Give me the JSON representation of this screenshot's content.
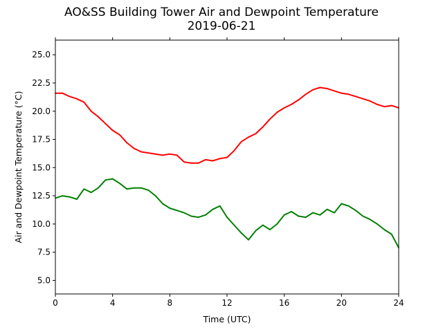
{
  "chart_data": {
    "type": "line",
    "title": "AO&SS Building Tower Air and Dewpoint Temperature",
    "subtitle": "2019-06-21",
    "xlabel": "Time (UTC)",
    "ylabel": "Air and Dewpoint Temperature (°C)",
    "xlim": [
      0,
      24
    ],
    "ylim": [
      3.8,
      26.3
    ],
    "x_ticks": [
      0,
      4,
      8,
      12,
      16,
      20,
      24
    ],
    "y_ticks": [
      5.0,
      7.5,
      10.0,
      12.5,
      15.0,
      17.5,
      20.0,
      22.5,
      25.0
    ],
    "y_tick_labels": [
      "5.0",
      "7.5",
      "10.0",
      "12.5",
      "15.0",
      "17.5",
      "20.0",
      "22.5",
      "25.0"
    ],
    "grid": false,
    "legend": "none",
    "series": [
      {
        "color": "#ff0000",
        "x": [
          0,
          0.5,
          1,
          1.5,
          2,
          2.5,
          3,
          3.5,
          4,
          4.5,
          5,
          5.5,
          6,
          6.5,
          7,
          7.5,
          8,
          8.5,
          9,
          9.5,
          10,
          10.5,
          11,
          11.5,
          12,
          12.5,
          13,
          13.5,
          14,
          14.5,
          15,
          15.5,
          16,
          16.5,
          17,
          17.5,
          18,
          18.5,
          19,
          19.5,
          20,
          20.5,
          21,
          21.5,
          22,
          22.5,
          23,
          23.5,
          24
        ],
        "values": [
          21.6,
          21.6,
          21.3,
          21.1,
          20.8,
          20.0,
          19.5,
          18.9,
          18.3,
          17.9,
          17.2,
          16.7,
          16.4,
          16.3,
          16.2,
          16.1,
          16.2,
          16.1,
          15.5,
          15.4,
          15.4,
          15.7,
          15.6,
          15.8,
          15.9,
          16.5,
          17.3,
          17.7,
          18.0,
          18.6,
          19.3,
          19.9,
          20.3,
          20.6,
          21.0,
          21.5,
          21.9,
          22.1,
          22.0,
          21.8,
          21.6,
          21.5,
          21.3,
          21.1,
          20.9,
          20.6,
          20.4,
          20.5,
          20.3
        ]
      },
      {
        "color": "#008000",
        "x": [
          0,
          0.5,
          1,
          1.5,
          2,
          2.5,
          3,
          3.5,
          4,
          4.5,
          5,
          5.5,
          6,
          6.5,
          7,
          7.5,
          8,
          8.5,
          9,
          9.5,
          10,
          10.5,
          11,
          11.5,
          12,
          12.5,
          13,
          13.5,
          14,
          14.5,
          15,
          15.5,
          16,
          16.5,
          17,
          17.5,
          18,
          18.5,
          19,
          19.5,
          20,
          20.5,
          21,
          21.5,
          22,
          22.5,
          23,
          23.5,
          24
        ],
        "values": [
          12.3,
          12.5,
          12.4,
          12.2,
          13.1,
          12.8,
          13.2,
          13.9,
          14.0,
          13.6,
          13.1,
          13.2,
          13.2,
          13.0,
          12.5,
          11.8,
          11.4,
          11.2,
          11.0,
          10.7,
          10.6,
          10.8,
          11.3,
          11.6,
          10.6,
          9.9,
          9.2,
          8.6,
          9.4,
          9.9,
          9.5,
          10.0,
          10.8,
          11.1,
          10.7,
          10.6,
          11.0,
          10.8,
          11.3,
          11.0,
          11.8,
          11.6,
          11.2,
          10.7,
          10.4,
          10.0,
          9.5,
          9.1,
          7.9
        ]
      }
    ]
  }
}
